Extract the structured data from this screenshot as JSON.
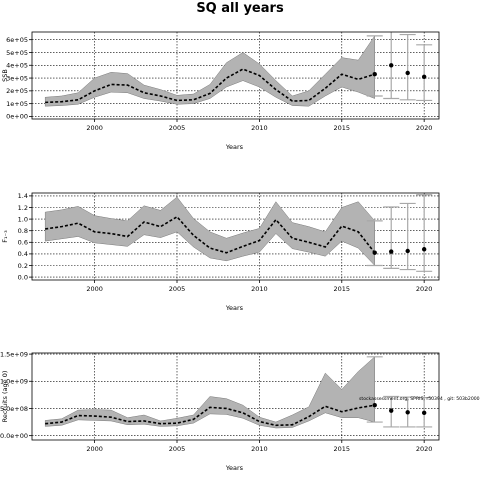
{
  "figure_title": "SQ all years",
  "chart_data": [
    {
      "type": "line",
      "panel": "SSB",
      "xlabel": "Years",
      "ylabel": "SSB",
      "xlim": [
        1996.2,
        2020.9
      ],
      "ylim": [
        -20000,
        660000
      ],
      "xticks": [
        2000,
        2005,
        2010,
        2015,
        2020
      ],
      "xtick_labels": [
        "2000",
        "2005",
        "2010",
        "2015",
        "2020"
      ],
      "yticks": [
        0,
        100000,
        200000,
        300000,
        400000,
        500000,
        600000
      ],
      "ytick_labels": [
        "0e+00",
        "1e+05",
        "2e+05",
        "3e+05",
        "4e+05",
        "5e+05",
        "6e+05"
      ],
      "grid": true,
      "series": [
        {
          "x": [
            1997,
            1998,
            1999,
            2000,
            2001,
            2002,
            2003,
            2004,
            2005,
            2006,
            2007,
            2008,
            2009,
            2010,
            2011,
            2012,
            2013,
            2014,
            2015,
            2016,
            2017
          ],
          "values": [
            110000,
            115000,
            130000,
            200000,
            250000,
            245000,
            185000,
            160000,
            125000,
            130000,
            180000,
            300000,
            370000,
            320000,
            210000,
            120000,
            125000,
            220000,
            330000,
            290000,
            330000
          ],
          "low": [
            80000,
            85000,
            95000,
            150000,
            190000,
            185000,
            140000,
            120000,
            95000,
            100000,
            140000,
            230000,
            280000,
            230000,
            150000,
            85000,
            80000,
            160000,
            230000,
            190000,
            140000
          ],
          "high": [
            150000,
            160000,
            185000,
            300000,
            345000,
            335000,
            245000,
            210000,
            165000,
            175000,
            250000,
            420000,
            500000,
            410000,
            280000,
            160000,
            200000,
            330000,
            460000,
            440000,
            630000
          ]
        },
        {
          "x": [
            2017,
            2018,
            2019,
            2020
          ],
          "values": [
            330000,
            400000,
            340000,
            310000
          ],
          "low": [
            160000,
            140000,
            130000,
            125000
          ],
          "high": [
            630000,
            730000,
            640000,
            560000
          ]
        }
      ]
    },
    {
      "type": "line",
      "panel": "F",
      "xlabel": "Years",
      "ylabel": "F₁₋₃",
      "xlim": [
        1996.2,
        2020.9
      ],
      "ylim": [
        -0.05,
        1.45
      ],
      "xticks": [
        2000,
        2005,
        2010,
        2015,
        2020
      ],
      "xtick_labels": [
        "2000",
        "2005",
        "2010",
        "2015",
        "2020"
      ],
      "yticks": [
        0,
        0.2,
        0.4,
        0.6,
        0.8,
        1.0,
        1.2,
        1.4
      ],
      "ytick_labels": [
        "0.0",
        "0.2",
        "0.4",
        "0.6",
        "0.8",
        "1.0",
        "1.2",
        "1.4"
      ],
      "grid": true,
      "series": [
        {
          "x": [
            1997,
            1998,
            1999,
            2000,
            2001,
            2002,
            2003,
            2004,
            2005,
            2006,
            2007,
            2008,
            2009,
            2010,
            2011,
            2012,
            2013,
            2014,
            2015,
            2016,
            2017
          ],
          "values": [
            0.83,
            0.87,
            0.93,
            0.78,
            0.75,
            0.7,
            0.95,
            0.87,
            1.04,
            0.72,
            0.5,
            0.42,
            0.53,
            0.63,
            0.99,
            0.67,
            0.6,
            0.52,
            0.88,
            0.78,
            0.42
          ],
          "low": [
            0.62,
            0.66,
            0.7,
            0.59,
            0.56,
            0.53,
            0.73,
            0.68,
            0.78,
            0.52,
            0.33,
            0.28,
            0.36,
            0.43,
            0.75,
            0.49,
            0.43,
            0.36,
            0.62,
            0.5,
            0.2
          ],
          "high": [
            1.12,
            1.16,
            1.22,
            1.06,
            1.01,
            0.97,
            1.23,
            1.15,
            1.38,
            1.01,
            0.78,
            0.67,
            0.76,
            0.84,
            1.3,
            0.94,
            0.87,
            0.78,
            1.2,
            1.3,
            0.97
          ]
        },
        {
          "x": [
            2017,
            2018,
            2019,
            2020
          ],
          "values": [
            0.42,
            0.44,
            0.45,
            0.48
          ],
          "low": [
            0.2,
            0.15,
            0.13,
            0.1
          ],
          "high": [
            0.97,
            1.21,
            1.27,
            1.42
          ]
        }
      ]
    },
    {
      "type": "line",
      "panel": "Recruits",
      "xlabel": "Years",
      "ylabel": "Recruits (age 0)",
      "xlim": [
        1996.2,
        2020.9
      ],
      "ylim": [
        -80000000,
        1520000000
      ],
      "xticks": [
        2000,
        2005,
        2010,
        2015,
        2020
      ],
      "xtick_labels": [
        "2000",
        "2005",
        "2010",
        "2015",
        "2020"
      ],
      "yticks": [
        0,
        500000000,
        1000000000,
        1500000000
      ],
      "ytick_labels": [
        "0.0e+00",
        "5.0e+08",
        "1.0e+09",
        "1.5e+09"
      ],
      "grid": true,
      "annotation": "stockassessment.org, SPRIS, r50394 , git: 503b2000",
      "series": [
        {
          "x": [
            1997,
            1998,
            1999,
            2000,
            2001,
            2002,
            2003,
            2004,
            2005,
            2006,
            2007,
            2008,
            2009,
            2010,
            2011,
            2012,
            2013,
            2014,
            2015,
            2016,
            2017
          ],
          "values": [
            220000000,
            250000000,
            370000000,
            360000000,
            340000000,
            260000000,
            270000000,
            220000000,
            230000000,
            300000000,
            520000000,
            500000000,
            420000000,
            260000000,
            190000000,
            200000000,
            350000000,
            540000000,
            440000000,
            510000000,
            560000000
          ],
          "low": [
            170000000,
            190000000,
            290000000,
            280000000,
            270000000,
            200000000,
            210000000,
            170000000,
            180000000,
            230000000,
            400000000,
            390000000,
            320000000,
            190000000,
            140000000,
            150000000,
            270000000,
            420000000,
            330000000,
            330000000,
            250000000
          ],
          "high": [
            280000000,
            310000000,
            470000000,
            480000000,
            470000000,
            330000000,
            380000000,
            270000000,
            320000000,
            380000000,
            720000000,
            680000000,
            560000000,
            340000000,
            250000000,
            380000000,
            530000000,
            1150000000,
            850000000,
            1180000000,
            1450000000
          ]
        },
        {
          "x": [
            2017,
            2018,
            2019,
            2020
          ],
          "values": [
            560000000,
            460000000,
            430000000,
            420000000
          ],
          "low": [
            250000000,
            160000000,
            160000000,
            160000000
          ],
          "high": [
            1450000000,
            720000000,
            710000000,
            700000000
          ]
        }
      ]
    }
  ]
}
